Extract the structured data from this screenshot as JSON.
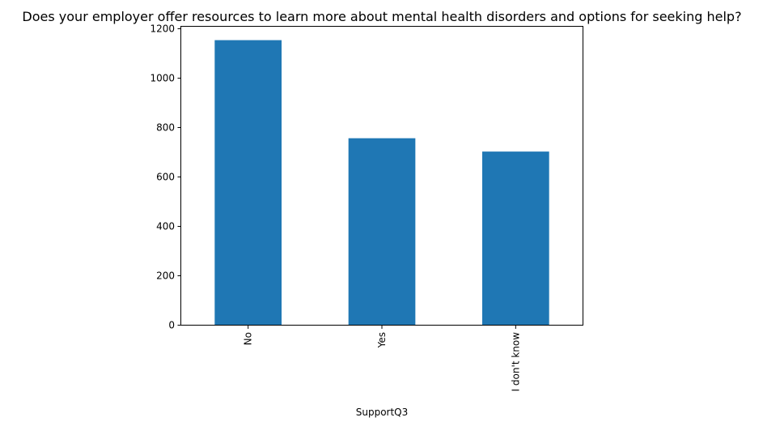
{
  "chart_data": {
    "type": "bar",
    "title": "Does your employer offer resources to learn more about mental health disorders and options for seeking help?",
    "xlabel": "SupportQ3",
    "ylabel": "",
    "categories": [
      "No",
      "Yes",
      "I don't know"
    ],
    "values": [
      1152,
      755,
      701
    ],
    "ylim": [
      0,
      1209.6
    ],
    "yticks": [
      0,
      200,
      400,
      600,
      800,
      1000,
      1200
    ],
    "grid": false,
    "bar_color": "#1f77b4"
  }
}
